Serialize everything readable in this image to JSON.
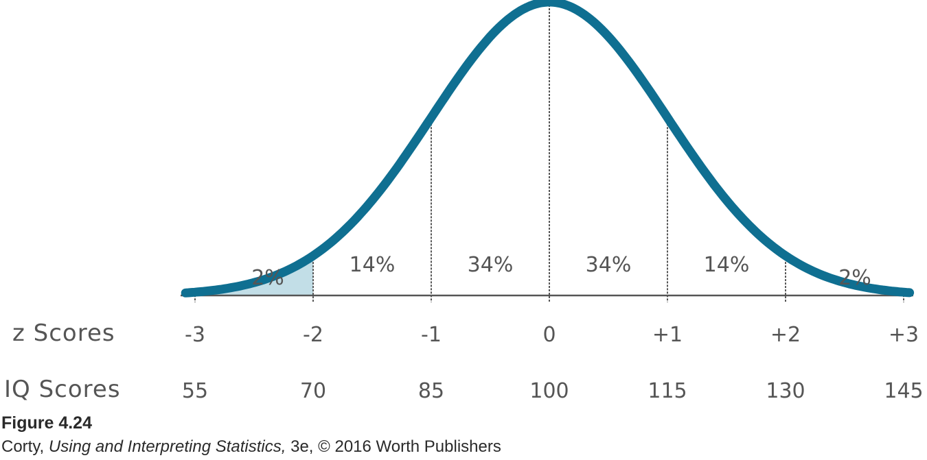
{
  "chart_data": {
    "type": "area",
    "distribution": "normal",
    "mean": 100,
    "sd": 15,
    "x_range": [
      55,
      145
    ],
    "z_scores": [
      "-3",
      "-2",
      "-1",
      "0",
      "+1",
      "+2",
      "+3"
    ],
    "iq_scores": [
      "55",
      "70",
      "85",
      "100",
      "115",
      "130",
      "145"
    ],
    "z_values": [
      -3,
      -2,
      -1,
      0,
      1,
      2,
      3
    ],
    "regions": [
      {
        "from": -3,
        "to": -2,
        "label": "2%",
        "shaded": true
      },
      {
        "from": -2,
        "to": -1,
        "label": "14%",
        "shaded": false
      },
      {
        "from": -1,
        "to": 0,
        "label": "34%",
        "shaded": false
      },
      {
        "from": 0,
        "to": 1,
        "label": "34%",
        "shaded": false
      },
      {
        "from": 1,
        "to": 2,
        "label": "14%",
        "shaded": false
      },
      {
        "from": 2,
        "to": 3,
        "label": "2%",
        "shaded": false
      }
    ],
    "row_labels": {
      "z": "z Scores",
      "iq": "IQ Scores"
    },
    "colors": {
      "curve": "#0f6f91",
      "shade": "#8fc3d4",
      "ink": "#555555"
    }
  },
  "caption": {
    "figure": "Figure 4.24",
    "author": "Corty,",
    "book": "Using and Interpreting Statistics,",
    "rest": "3e, © 2016 Worth Publishers"
  }
}
